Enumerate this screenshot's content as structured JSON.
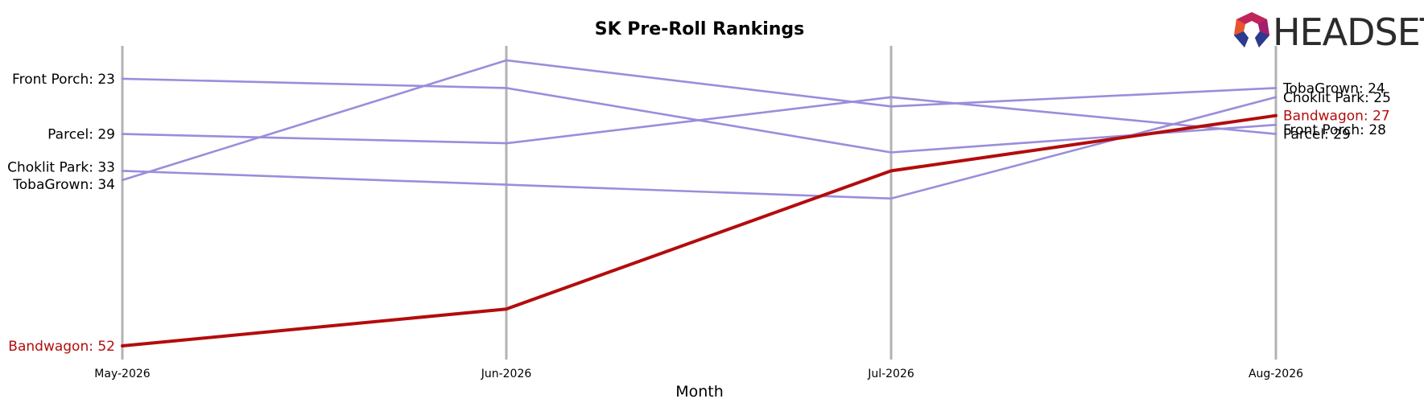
{
  "brand": {
    "name": "HEADSET",
    "colors": [
      "#e8552a",
      "#c0245c",
      "#a21d6e",
      "#2c3a8f"
    ]
  },
  "chart_data": {
    "type": "line",
    "title": "SK Pre-Roll Rankings",
    "xlabel": "Month",
    "ylabel": "",
    "categories": [
      "May-2026",
      "Jun-2026",
      "Jul-2026",
      "Aug-2026"
    ],
    "y_inverted": true,
    "ylim": [
      55,
      19
    ],
    "grid": "vertical lines at each month",
    "highlight_color": "#b30c0c",
    "other_color": "#9b8ddb",
    "series": [
      {
        "name": "Front Porch",
        "values": [
          23,
          24,
          31,
          28
        ],
        "highlight": false,
        "start_label": "Front Porch: 23",
        "end_label": "Front Porch: 28"
      },
      {
        "name": "Parcel",
        "values": [
          29,
          30,
          25,
          29
        ],
        "highlight": false,
        "start_label": "Parcel: 29",
        "end_label": "Parcel: 29"
      },
      {
        "name": "Choklit Park",
        "values": [
          33,
          34.5,
          36,
          25
        ],
        "highlight": false,
        "start_label": "Choklit Park: 33",
        "end_label": "Choklit Park: 25"
      },
      {
        "name": "TobaGrown",
        "values": [
          34,
          21,
          26,
          24
        ],
        "highlight": false,
        "start_label": "TobaGrown: 34",
        "end_label": "TobaGrown: 24"
      },
      {
        "name": "Bandwagon",
        "values": [
          52,
          48,
          33,
          27
        ],
        "highlight": true,
        "start_label": "Bandwagon: 52",
        "end_label": "Bandwagon: 27"
      }
    ]
  }
}
